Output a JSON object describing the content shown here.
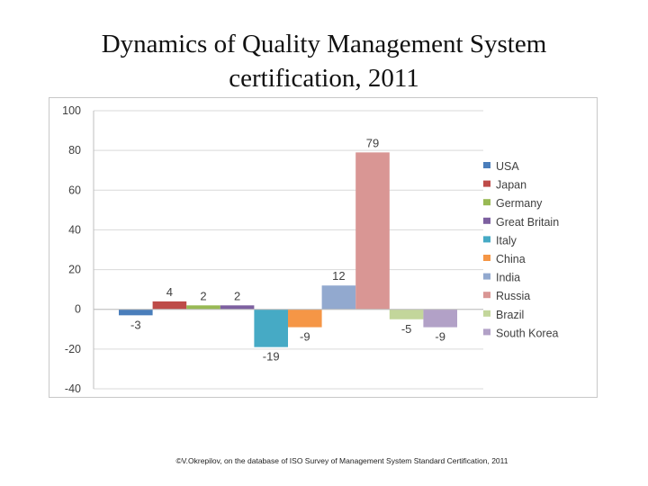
{
  "slide": {
    "title_line1": "Dynamics of Quality Management System",
    "title_line2": "certification, 2011",
    "footnote": "©V.Okrepilov, on the database of ISO Survey of Management System Standard Certification, 2011"
  },
  "chart_data": {
    "type": "bar",
    "title": "",
    "xlabel": "",
    "ylabel": "",
    "ylim": [
      -40,
      100
    ],
    "yticks": [
      100,
      80,
      60,
      40,
      20,
      0,
      -20,
      -40
    ],
    "grid": true,
    "legend_position": "right",
    "categories": [
      "USA",
      "Japan",
      "Germany",
      "Great Britain",
      "Italy",
      "China",
      "India",
      "Russia",
      "Brazil",
      "South Korea"
    ],
    "values": [
      -3,
      4,
      2,
      2,
      -19,
      -9,
      12,
      79,
      -5,
      -9
    ],
    "data_labels": [
      "-3",
      "4",
      "2",
      "2",
      "-19",
      "-9",
      "12",
      "79",
      "-5",
      "-9"
    ],
    "colors": [
      "#4a7ebb",
      "#be4b48",
      "#98b954",
      "#7d60a0",
      "#46aac5",
      "#f59646",
      "#92a9cf",
      "#d99694",
      "#c3d69b",
      "#b2a1c7"
    ],
    "text_color": "#404040",
    "grid_color": "#d9d9d9"
  }
}
